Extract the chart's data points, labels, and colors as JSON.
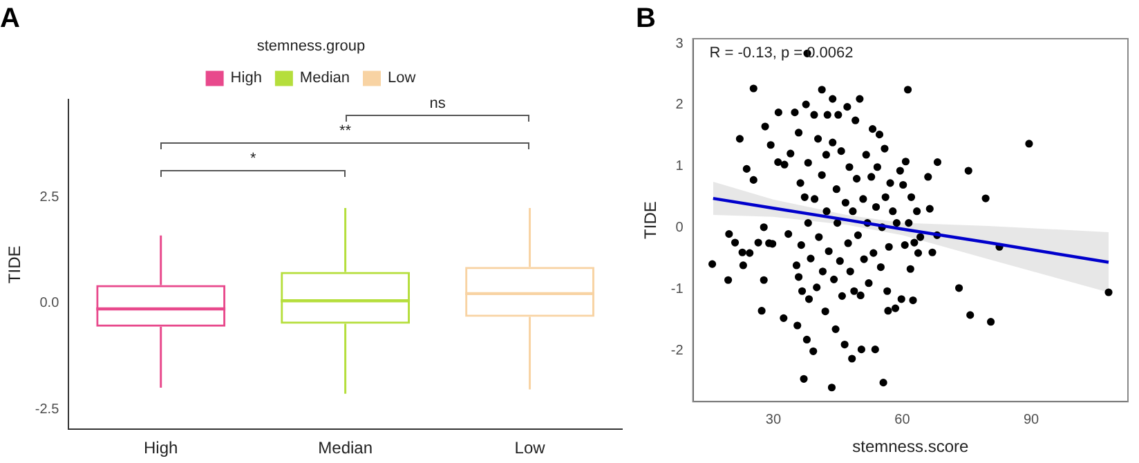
{
  "chart_data": [
    {
      "type": "box",
      "title": "A",
      "ylabel": "TIDE",
      "legend_title": "stemness.group",
      "legend": "top",
      "categories": [
        "High",
        "Median",
        "Low"
      ],
      "series": [
        {
          "name": "High",
          "color": "#e8498c",
          "boxes": [
            {
              "low": -1.99,
              "q1": -0.55,
              "median": -0.13,
              "q3": 0.43,
              "high": 1.6
            },
            null,
            null
          ]
        },
        {
          "name": "Median",
          "color": "#b5de3c",
          "boxes": [
            null,
            {
              "low": -2.13,
              "q1": -0.48,
              "median": 0.06,
              "q3": 0.74,
              "high": 2.25
            },
            null
          ]
        },
        {
          "name": "Low",
          "color": "#f8d3a3",
          "boxes": [
            null,
            null,
            {
              "low": -2.03,
              "q1": -0.32,
              "median": 0.23,
              "q3": 0.86,
              "high": 2.25
            }
          ]
        }
      ],
      "ylim": [
        -2.97,
        4.8
      ],
      "yticks": [
        -2.5,
        {
          "value": 0,
          "label": "0.0"
        },
        2.5
      ],
      "grid": false,
      "annotations": [
        "*",
        "**",
        "ns"
      ]
    },
    {
      "type": "scatter",
      "title": "B",
      "xlabel": "stemness.score",
      "ylabel": "TIDE",
      "xlim": [
        11.3,
        112.5
      ],
      "xticks": [
        30,
        60,
        90
      ],
      "ylim": [
        -2.83,
        3.08
      ],
      "yticks": [
        -2,
        -1,
        0,
        1,
        2,
        3
      ],
      "grid": false,
      "legend": false,
      "annotations": [
        "R = -0.13, p = 0.0062"
      ],
      "series": [
        {
          "color": "#000000",
          "marker": "circle",
          "x": [
            15.8,
            19.5,
            19.7,
            21.1,
            22.2,
            22.8,
            23.0,
            23.8,
            24.5,
            25.4,
            25.4,
            26.5,
            27.3,
            27.8,
            27.8,
            28.1,
            29.0,
            29.4,
            29.8,
            31.2,
            31.1,
            32.4,
            32.6,
            33.5,
            34.0,
            35.0,
            35.4,
            35.6,
            35.9,
            35.9,
            36.3,
            36.5,
            36.7,
            37.1,
            37.3,
            37.6,
            37.8,
            37.9,
            38.1,
            38.1,
            38.3,
            38.7,
            39.3,
            39.5,
            39.6,
            40.1,
            40.4,
            40.6,
            41.3,
            41.3,
            41.5,
            42.1,
            42.3,
            42.4,
            42.6,
            42.9,
            43.6,
            43.8,
            43.8,
            44.1,
            44.5,
            44.7,
            44.9,
            45.1,
            45.5,
            45.8,
            46.0,
            46.6,
            46.8,
            47.2,
            47.4,
            47.7,
            47.9,
            48.3,
            48.5,
            48.8,
            49.1,
            49.4,
            49.7,
            50.1,
            50.3,
            50.5,
            50.9,
            51.1,
            51.6,
            51.9,
            52.2,
            52.8,
            53.1,
            53.3,
            53.7,
            53.9,
            54.2,
            54.7,
            55.0,
            55.3,
            55.6,
            55.9,
            56.1,
            56.5,
            56.7,
            56.9,
            57.2,
            57.8,
            58.4,
            58.7,
            59.5,
            59.8,
            60.2,
            60.6,
            60.8,
            61.3,
            61.5,
            61.9,
            62.1,
            62.5,
            62.8,
            63.4,
            63.7,
            64.2,
            66.0,
            66.4,
            67.0,
            68.2,
            68.1,
            73.2,
            75.4,
            75.8,
            79.4,
            80.6,
            82.6,
            89.5,
            108.0
          ],
          "values": [
            -0.59,
            -0.85,
            -0.1,
            -0.24,
            1.45,
            -0.4,
            -0.61,
            0.96,
            -0.41,
            2.27,
            0.78,
            -0.24,
            -1.35,
            0.01,
            -0.85,
            1.65,
            -0.25,
            1.35,
            -0.26,
            1.88,
            1.07,
            -1.47,
            1.03,
            -0.1,
            1.21,
            1.88,
            -0.61,
            -1.59,
            1.55,
            -0.8,
            0.73,
            -0.28,
            -1.03,
            -2.46,
            0.5,
            2.01,
            -1.82,
            2.84,
            1.06,
            0.08,
            -1.16,
            -0.5,
            -2.01,
            1.84,
            0.47,
            -0.97,
            1.45,
            -0.15,
            2.25,
            0.86,
            -0.71,
            -1.36,
            1.19,
            0.27,
            1.84,
            -0.38,
            -2.6,
            1.39,
            2.1,
            -0.84,
            -1.65,
            0.63,
            0.08,
            1.84,
            -0.54,
            1.25,
            -1.11,
            -1.9,
            0.41,
            1.97,
            -0.25,
            0.99,
            -0.71,
            -2.13,
            0.27,
            -1.03,
            1.75,
            0.8,
            -0.12,
            2.1,
            -1.1,
            -1.98,
            0.47,
            -0.51,
            1.19,
            0.08,
            -0.9,
            0.83,
            1.61,
            -0.41,
            -1.98,
            0.34,
            0.99,
            1.52,
            -0.64,
            0.01,
            -2.52,
            1.29,
            0.5,
            -1.03,
            -1.35,
            -0.31,
            0.73,
            0.27,
            -1.31,
            0.08,
            0.93,
            -1.16,
            0.7,
            -0.28,
            1.08,
            2.25,
            0.08,
            -0.67,
            0.5,
            -1.18,
            -0.24,
            0.27,
            -0.41,
            -0.15,
            0.83,
            0.31,
            -0.4,
            1.07,
            -0.12,
            -0.98,
            0.93,
            -1.42,
            0.48,
            -1.53,
            -0.31,
            1.37,
            -1.05
          ]
        },
        {
          "type": "line",
          "color": "#0000cc",
          "x": [
            16,
            30,
            47,
            60,
            80,
            108
          ],
          "values": [
            0.48,
            0.32,
            0.13,
            -0.02,
            -0.24,
            -0.56
          ],
          "lower": [
            0.21,
            0.18,
            0.05,
            -0.12,
            -0.51,
            -1.05
          ],
          "upper": [
            0.75,
            0.46,
            0.21,
            0.08,
            0.03,
            -0.07
          ]
        }
      ]
    }
  ]
}
